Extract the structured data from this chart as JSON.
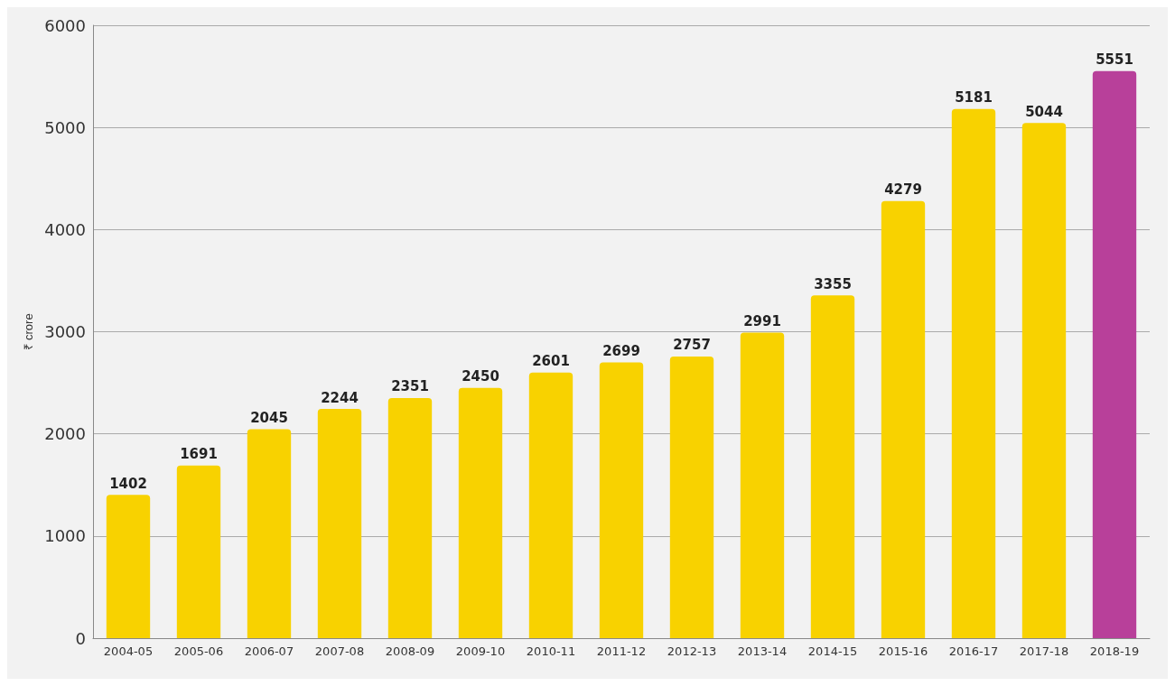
{
  "chart_data": {
    "type": "bar",
    "ylabel": "₹ crore",
    "categories": [
      "2004-05",
      "2005-06",
      "2006-07",
      "2007-08",
      "2008-09",
      "2009-10",
      "2010-11",
      "2011-12",
      "2012-13",
      "2013-14",
      "2014-15",
      "2015-16",
      "2016-17",
      "2017-18",
      "2018-19"
    ],
    "values": [
      1402,
      1691,
      2045,
      2244,
      2351,
      2450,
      2601,
      2699,
      2757,
      2991,
      3355,
      4279,
      5181,
      5044,
      5551
    ],
    "colors": [
      "#f8d200",
      "#f8d200",
      "#f8d200",
      "#f8d200",
      "#f8d200",
      "#f8d200",
      "#f8d200",
      "#f8d200",
      "#f8d200",
      "#f8d200",
      "#f8d200",
      "#f8d200",
      "#f8d200",
      "#f8d200",
      "#b8409a"
    ],
    "ylim": [
      0,
      6000
    ],
    "yticks": [
      0,
      1000,
      2000,
      3000,
      4000,
      5000,
      6000
    ],
    "grid": "y",
    "data_labels": true
  }
}
